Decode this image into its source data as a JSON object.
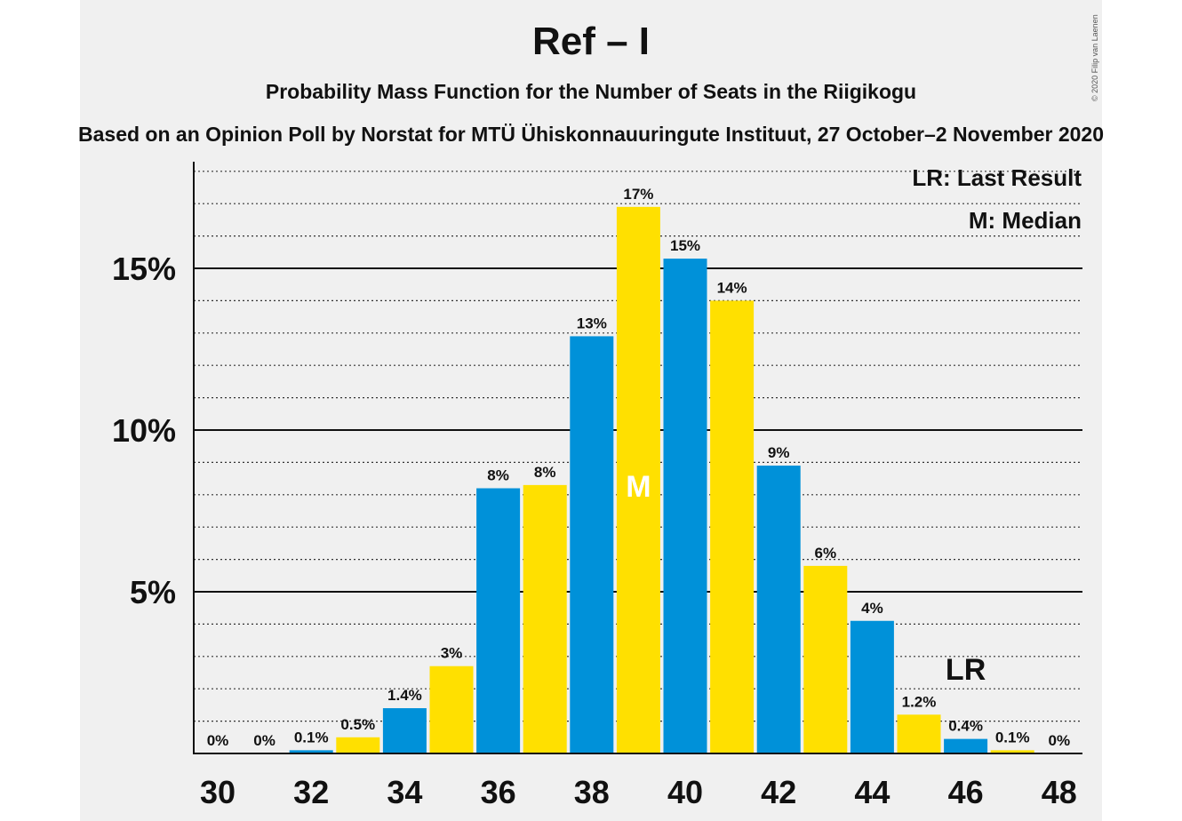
{
  "title": "Ref – I",
  "subtitle": "Probability Mass Function for the Number of Seats in the Riigikogu",
  "subtitle2": "Based on an Opinion Poll by Norstat for MTÜ Ühiskonnauuringute Instituut, 27 October–2 November 2020",
  "copyright": "© 2020 Filip van Laenen",
  "colors": {
    "blue": "#0091d9",
    "yellow": "#ffe000",
    "panel": "#f0f0f0",
    "text": "#111111"
  },
  "chart_data": {
    "type": "bar",
    "x": [
      30,
      31,
      32,
      33,
      34,
      35,
      36,
      37,
      38,
      39,
      40,
      41,
      42,
      43,
      44,
      45,
      46,
      47,
      48
    ],
    "values": [
      0,
      0,
      0.1,
      0.5,
      1.4,
      2.7,
      8.2,
      8.3,
      12.9,
      16.9,
      15.3,
      14.0,
      8.9,
      5.8,
      4.1,
      1.2,
      0.45,
      0.1,
      0
    ],
    "labels": [
      "0%",
      "0%",
      "0.1%",
      "0.5%",
      "1.4%",
      "3%",
      "8%",
      "8%",
      "13%",
      "17%",
      "15%",
      "14%",
      "9%",
      "6%",
      "4%",
      "1.2%",
      "0.4%",
      "0.1%",
      "0%"
    ],
    "x_tick_labels": [
      "30",
      "32",
      "34",
      "36",
      "38",
      "40",
      "42",
      "44",
      "46",
      "48"
    ],
    "y_tick_labels": [
      "5%",
      "10%",
      "15%"
    ],
    "y_ticks": [
      5,
      10,
      15
    ],
    "ylim": [
      0,
      18.3
    ],
    "median_seat": 39,
    "median_label": "M",
    "last_result_seat": 46,
    "last_result_label": "LR",
    "legend": [
      "LR: Last Result",
      "M: Median"
    ],
    "legend_position": "top-right",
    "minor_grid_step": 1,
    "bar_colors": [
      "blue",
      "yellow"
    ]
  }
}
